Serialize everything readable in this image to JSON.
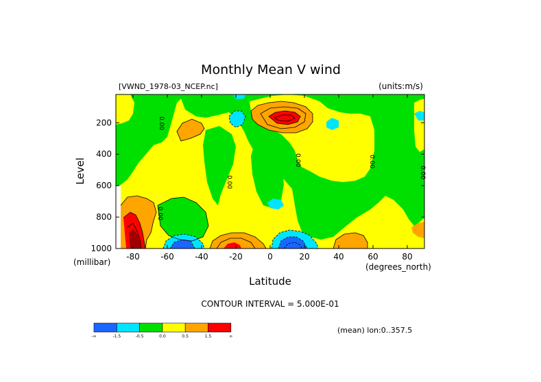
{
  "chart_data": {
    "type": "contour",
    "title": "Monthly Mean V wind",
    "file_label": "[VWND_1978-03_NCEP.nc]",
    "units_label": "(units:m/s)",
    "xlabel": "Latitude",
    "ylabel": "Level",
    "x_unit": "(degrees_north)",
    "y_unit": "(millibar)",
    "xlim": [
      -90,
      90
    ],
    "ylim": [
      1000,
      20
    ],
    "x_ticks": [
      {
        "value": -80,
        "label": "-80"
      },
      {
        "value": -60,
        "label": "-60"
      },
      {
        "value": -40,
        "label": "-40"
      },
      {
        "value": -20,
        "label": "-20"
      },
      {
        "value": 0,
        "label": "0"
      },
      {
        "value": 20,
        "label": "20"
      },
      {
        "value": 40,
        "label": "40"
      },
      {
        "value": 60,
        "label": "60"
      },
      {
        "value": 80,
        "label": "80"
      }
    ],
    "y_ticks": [
      {
        "value": 200,
        "label": "200"
      },
      {
        "value": 400,
        "label": "400"
      },
      {
        "value": 600,
        "label": "600"
      },
      {
        "value": 800,
        "label": "800"
      },
      {
        "value": 1000,
        "label": "1000"
      }
    ],
    "contour_interval_text": "CONTOUR INTERVAL = 5.000E-01",
    "contour_line_label": "0.00",
    "mean_text": "(mean) lon:0..357.5",
    "colors": {
      "lt_m1.5": "#1a66ff",
      "m1.5_m0.5": "#00e5ff",
      "m0.5_0": "#00e000",
      "0_0.5": "#ffff00",
      "0.5_1.5": "#ffa500",
      "gt_1.5": "#ff0000",
      "dark_red": "#a00000",
      "blue_dark": "#1040e0"
    },
    "legend": {
      "bins": [
        "#1a66ff",
        "#00e5ff",
        "#00e000",
        "#ffff00",
        "#ffa500",
        "#ff0000"
      ],
      "tick_labels": [
        "-∞",
        "-1.5",
        "-0.5",
        "0.0",
        "0.5",
        "1.5",
        "∞"
      ]
    },
    "features": [
      {
        "name": "upper tropical jet max",
        "lat": 13,
        "level": 150,
        "value": "> 1.5"
      },
      {
        "name": "surface equatorial min",
        "lat": 10,
        "level": 950,
        "value": "< -1.5"
      },
      {
        "name": "surface midlat south min",
        "lat": -52,
        "level": 980,
        "value": "< -1.5"
      },
      {
        "name": "surface subtropic south max",
        "lat": -23,
        "level": 980,
        "value": "> 1.5"
      },
      {
        "name": "polar south max",
        "lat": -84,
        "level": 960,
        "value": "> 1.5"
      }
    ]
  }
}
